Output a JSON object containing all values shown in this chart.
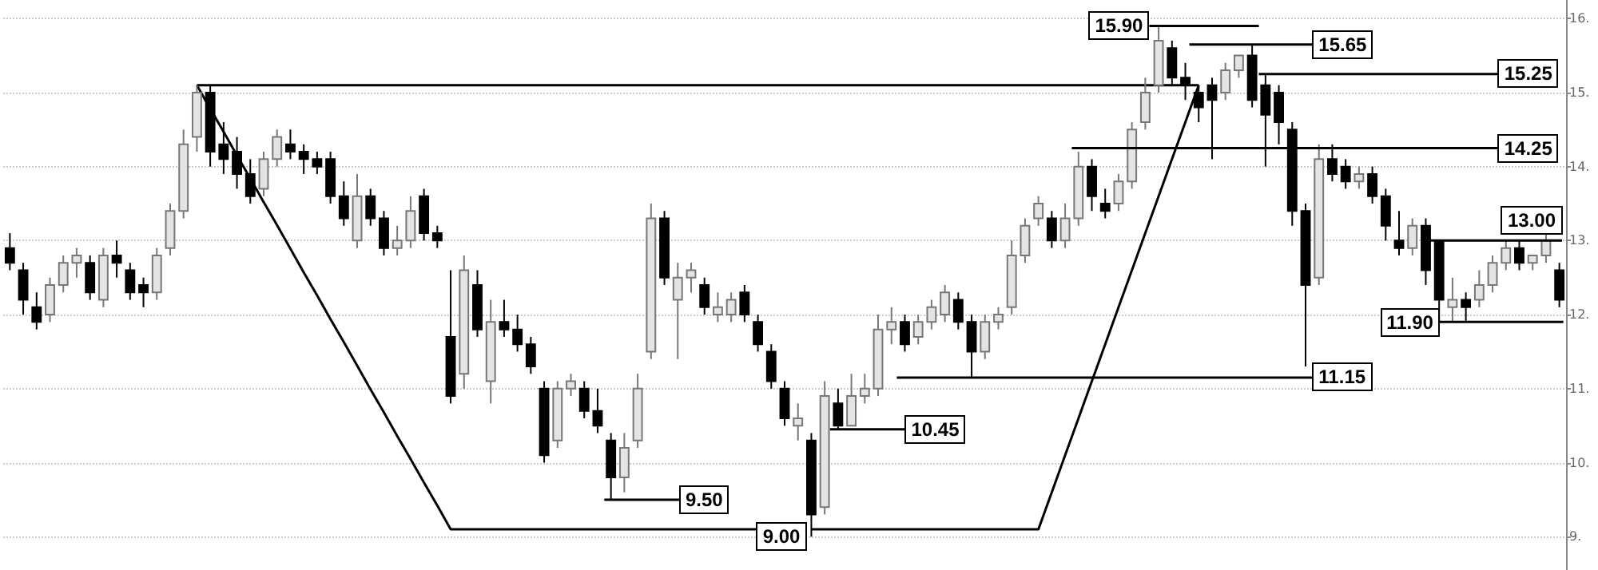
{
  "chart_data": {
    "type": "candlestick",
    "grid": "y",
    "tick_labels": "y",
    "marker": "none",
    "colors": [
      "#000000",
      "#000000",
      "#000000",
      "#e4e4e4",
      "#e4e4e4",
      "#e4e4e4",
      "#000000",
      "#e4e4e4",
      "#000000",
      "#000000",
      "#000000",
      "#e4e4e4",
      "#e4e4e4",
      "#e4e4e4",
      "#e4e4e4",
      "#000000",
      "#000000",
      "#000000",
      "#000000",
      "#e4e4e4",
      "#e4e4e4",
      "#000000",
      "#000000",
      "#000000",
      "#000000",
      "#000000",
      "#e4e4e4",
      "#000000",
      "#000000",
      "#e4e4e4",
      "#e4e4e4",
      "#000000",
      "#000000",
      "#000000",
      "#e4e4e4",
      "#000000",
      "#e4e4e4",
      "#000000",
      "#000000",
      "#000000",
      "#000000",
      "#e4e4e4",
      "#e4e4e4",
      "#000000",
      "#000000",
      "#000000",
      "#e4e4e4",
      "#e4e4e4",
      "#e4e4e4",
      "#000000",
      "#e4e4e4",
      "#e4e4e4",
      "#000000",
      "#e4e4e4",
      "#e4e4e4",
      "#000000",
      "#000000",
      "#000000",
      "#000000",
      "#e4e4e4",
      "#000000",
      "#e4e4e4",
      "#000000",
      "#e4e4e4",
      "#e4e4e4",
      "#e4e4e4",
      "#e4e4e4",
      "#000000",
      "#e4e4e4",
      "#e4e4e4",
      "#e4e4e4",
      "#000000",
      "#000000",
      "#e4e4e4",
      "#e4e4e4",
      "#e4e4e4",
      "#e4e4e4",
      "#e4e4e4",
      "#000000",
      "#e4e4e4",
      "#e4e4e4",
      "#000000",
      "#000000",
      "#e4e4e4",
      "#e4e4e4",
      "#e4e4e4",
      "#e4e4e4",
      "#000000",
      "#000000",
      "#000000",
      "#000000",
      "#e4e4e4",
      "#e4e4e4",
      "#000000",
      "#000000",
      "#000000",
      "#000000",
      "#000000",
      "#e4e4e4",
      "#000000",
      "#000000",
      "#e4e4e4",
      "#000000",
      "#000000",
      "#000000",
      "#e4e4e4",
      "#000000",
      "#000000",
      "#e4e4e4",
      "#000000",
      "#e4e4e4",
      "#e4e4e4",
      "#e4e4e4",
      "#000000",
      "#e4e4e4",
      "#e4e4e4",
      "#000000"
    ],
    "series": [
      {
        "type": "line",
        "color": "#000000",
        "values": [
          null,
          null,
          null,
          null,
          null,
          null,
          null,
          null,
          null,
          null,
          null,
          null,
          null,
          null,
          15.1,
          14.78,
          14.47,
          14.15,
          13.84,
          13.52,
          13.21,
          12.89,
          12.57,
          12.26,
          11.94,
          11.63,
          11.31,
          10.99,
          10.68,
          10.36,
          10.05,
          9.73,
          9.42,
          9.1,
          9.1,
          9.1,
          9.1,
          9.1,
          9.1,
          9.1,
          9.1,
          9.1,
          9.1,
          9.1,
          9.1,
          9.1,
          9.1,
          9.1,
          9.1,
          9.1,
          9.1,
          9.1,
          9.1,
          9.1,
          9.1,
          9.1,
          9.1,
          null,
          null,
          null,
          9.1,
          9.1,
          9.1,
          9.1,
          9.1,
          9.1,
          9.1,
          9.1,
          9.1,
          9.1,
          9.1,
          9.1,
          9.1,
          9.1,
          9.1,
          9.1,
          9.1,
          9.1,
          9.6,
          10.1,
          10.6,
          11.1,
          11.6,
          12.1,
          12.6,
          13.1,
          13.6,
          14.1,
          14.6,
          15.1,
          null,
          null,
          null,
          null,
          null,
          null,
          null,
          null,
          null,
          null,
          null,
          null,
          null,
          null,
          null,
          null,
          null,
          null,
          null,
          null,
          null,
          null,
          null,
          null,
          null,
          null,
          null
        ]
      },
      {
        "type": "line",
        "color": "#000000",
        "values": [
          null,
          null,
          null,
          null,
          null,
          null,
          null,
          null,
          null,
          null,
          null,
          null,
          null,
          null,
          15.1,
          15.1,
          15.1,
          15.1,
          15.1,
          15.1,
          15.1,
          15.1,
          15.1,
          15.1,
          15.1,
          15.1,
          15.1,
          15.1,
          15.1,
          15.1,
          15.1,
          15.1,
          15.1,
          15.1,
          15.1,
          15.1,
          15.1,
          15.1,
          15.1,
          15.1,
          15.1,
          15.1,
          15.1,
          15.1,
          15.1,
          15.1,
          15.1,
          15.1,
          15.1,
          15.1,
          15.1,
          15.1,
          15.1,
          15.1,
          15.1,
          15.1,
          15.1,
          15.1,
          15.1,
          15.1,
          15.1,
          15.1,
          15.1,
          15.1,
          15.1,
          15.1,
          15.1,
          15.1,
          15.1,
          15.1,
          15.1,
          15.1,
          15.1,
          15.1,
          15.1,
          15.1,
          15.1,
          15.1,
          15.1,
          15.1,
          15.1,
          15.1,
          15.1,
          15.1,
          15.1,
          15.1,
          15.1,
          15.1,
          15.1,
          15.1,
          null,
          null,
          null,
          null,
          null,
          null,
          null,
          null,
          null,
          null,
          null,
          null,
          null,
          null,
          null,
          null,
          null,
          null,
          null,
          null,
          null,
          null,
          null,
          null,
          null,
          null,
          null
        ]
      }
    ],
    "ylim": [
      8.55,
      16.25
    ],
    "yticks": [
      {
        "value": 9,
        "label": "9."
      },
      {
        "value": 10,
        "label": "10."
      },
      {
        "value": 11,
        "label": "11."
      },
      {
        "value": 12,
        "label": "12."
      },
      {
        "value": 13,
        "label": "13."
      },
      {
        "value": 14,
        "label": "14."
      },
      {
        "value": 15,
        "label": "15."
      },
      {
        "value": 16,
        "label": "16."
      }
    ],
    "categories": [
      null,
      null,
      null,
      null,
      null,
      null,
      null,
      null,
      null,
      null,
      null,
      null,
      null,
      null,
      null,
      null,
      null,
      null,
      null,
      null,
      null,
      null,
      null,
      null,
      null,
      null,
      null,
      null,
      null,
      null,
      null,
      null,
      null,
      null,
      null,
      null,
      null,
      null,
      null,
      null,
      null,
      null,
      null,
      null,
      null,
      null,
      null,
      null,
      null,
      null,
      null,
      null,
      null,
      null,
      null,
      null,
      null,
      null,
      null,
      null,
      null,
      null,
      null,
      null,
      null,
      null,
      null,
      null,
      null,
      null,
      null,
      null,
      null,
      null,
      null,
      null,
      null,
      null,
      null,
      null,
      null,
      null,
      null,
      null,
      null,
      null,
      null,
      null,
      null,
      null,
      null,
      null,
      null,
      null,
      null,
      null,
      null,
      null,
      null,
      null,
      null,
      null,
      null,
      null,
      null,
      null,
      null,
      null,
      null,
      null,
      null,
      null,
      null,
      null,
      null,
      null,
      null
    ],
    "ohlc": [
      [
        12.9,
        13.1,
        12.6,
        12.7
      ],
      [
        12.6,
        12.7,
        12.0,
        12.2
      ],
      [
        12.1,
        12.3,
        11.8,
        11.9
      ],
      [
        12.0,
        12.5,
        11.9,
        12.4
      ],
      [
        12.4,
        12.8,
        12.3,
        12.7
      ],
      [
        12.7,
        12.9,
        12.5,
        12.8
      ],
      [
        12.7,
        12.8,
        12.2,
        12.3
      ],
      [
        12.2,
        12.9,
        12.1,
        12.8
      ],
      [
        12.8,
        13.0,
        12.5,
        12.7
      ],
      [
        12.6,
        12.7,
        12.2,
        12.3
      ],
      [
        12.4,
        12.5,
        12.1,
        12.3
      ],
      [
        12.3,
        12.9,
        12.2,
        12.8
      ],
      [
        12.9,
        13.5,
        12.8,
        13.4
      ],
      [
        13.4,
        14.5,
        13.3,
        14.3
      ],
      [
        14.4,
        15.1,
        14.2,
        15.0
      ],
      [
        15.0,
        15.1,
        14.0,
        14.2
      ],
      [
        14.3,
        14.6,
        13.9,
        14.1
      ],
      [
        14.2,
        14.4,
        13.7,
        13.9
      ],
      [
        13.9,
        14.1,
        13.5,
        13.6
      ],
      [
        13.7,
        14.2,
        13.6,
        14.1
      ],
      [
        14.1,
        14.5,
        14.0,
        14.4
      ],
      [
        14.3,
        14.5,
        14.1,
        14.2
      ],
      [
        14.2,
        14.3,
        13.9,
        14.1
      ],
      [
        14.1,
        14.2,
        13.9,
        14.0
      ],
      [
        14.1,
        14.2,
        13.5,
        13.6
      ],
      [
        13.6,
        13.8,
        13.2,
        13.3
      ],
      [
        13.0,
        13.9,
        12.9,
        13.6
      ],
      [
        13.6,
        13.7,
        13.2,
        13.3
      ],
      [
        13.3,
        13.4,
        12.8,
        12.9
      ],
      [
        12.9,
        13.2,
        12.8,
        13.0
      ],
      [
        13.0,
        13.6,
        12.9,
        13.4
      ],
      [
        13.6,
        13.7,
        13.0,
        13.1
      ],
      [
        13.1,
        13.2,
        12.9,
        13.0
      ],
      [
        11.7,
        12.6,
        10.8,
        10.9
      ],
      [
        11.2,
        12.8,
        11.0,
        12.6
      ],
      [
        12.4,
        12.6,
        11.7,
        11.8
      ],
      [
        11.1,
        12.2,
        10.8,
        11.9
      ],
      [
        11.9,
        12.2,
        11.7,
        11.8
      ],
      [
        11.8,
        12.0,
        11.5,
        11.6
      ],
      [
        11.6,
        11.7,
        11.2,
        11.3
      ],
      [
        11.0,
        11.1,
        10.0,
        10.1
      ],
      [
        10.3,
        11.1,
        10.2,
        11.0
      ],
      [
        11.0,
        11.2,
        10.9,
        11.1
      ],
      [
        11.0,
        11.1,
        10.6,
        10.7
      ],
      [
        10.7,
        11.0,
        10.4,
        10.5
      ],
      [
        10.3,
        10.4,
        9.5,
        9.8
      ],
      [
        9.8,
        10.4,
        9.6,
        10.2
      ],
      [
        10.3,
        11.2,
        10.2,
        11.0
      ],
      [
        11.5,
        13.5,
        11.4,
        13.3
      ],
      [
        13.3,
        13.4,
        12.4,
        12.5
      ],
      [
        12.2,
        12.7,
        11.4,
        12.5
      ],
      [
        12.5,
        12.7,
        12.3,
        12.6
      ],
      [
        12.4,
        12.5,
        12.0,
        12.1
      ],
      [
        12.0,
        12.3,
        11.9,
        12.1
      ],
      [
        12.0,
        12.3,
        11.9,
        12.2
      ],
      [
        12.3,
        12.4,
        11.9,
        12.0
      ],
      [
        11.9,
        12.0,
        11.5,
        11.6
      ],
      [
        11.5,
        11.6,
        11.0,
        11.1
      ],
      [
        11.0,
        11.1,
        10.5,
        10.6
      ],
      [
        10.5,
        10.8,
        10.3,
        10.6
      ],
      [
        10.3,
        10.4,
        9.0,
        9.3
      ],
      [
        9.4,
        11.1,
        9.3,
        10.9
      ],
      [
        10.8,
        11.0,
        10.45,
        10.5
      ],
      [
        10.5,
        11.2,
        10.5,
        10.9
      ],
      [
        10.9,
        11.2,
        10.8,
        11.0
      ],
      [
        11.0,
        12.0,
        10.9,
        11.8
      ],
      [
        11.8,
        12.1,
        11.6,
        11.9
      ],
      [
        11.9,
        12.0,
        11.5,
        11.6
      ],
      [
        11.7,
        12.0,
        11.6,
        11.9
      ],
      [
        11.9,
        12.2,
        11.8,
        12.1
      ],
      [
        12.0,
        12.4,
        11.9,
        12.3
      ],
      [
        12.2,
        12.3,
        11.8,
        11.9
      ],
      [
        11.9,
        12.0,
        11.15,
        11.5
      ],
      [
        11.5,
        12.0,
        11.4,
        11.9
      ],
      [
        11.9,
        12.1,
        11.8,
        12.0
      ],
      [
        12.1,
        13.0,
        12.0,
        12.8
      ],
      [
        12.8,
        13.3,
        12.7,
        13.2
      ],
      [
        13.3,
        13.6,
        13.2,
        13.5
      ],
      [
        13.3,
        13.4,
        12.9,
        13.0
      ],
      [
        13.0,
        13.5,
        12.9,
        13.3
      ],
      [
        13.3,
        14.2,
        13.2,
        14.0
      ],
      [
        14.0,
        14.1,
        13.4,
        13.6
      ],
      [
        13.5,
        13.7,
        13.3,
        13.4
      ],
      [
        13.5,
        13.9,
        13.4,
        13.8
      ],
      [
        13.8,
        14.6,
        13.7,
        14.5
      ],
      [
        14.6,
        15.2,
        14.5,
        15.0
      ],
      [
        15.1,
        15.9,
        15.0,
        15.7
      ],
      [
        15.6,
        15.7,
        15.1,
        15.2
      ],
      [
        15.2,
        15.4,
        14.9,
        15.1
      ],
      [
        15.0,
        15.1,
        14.6,
        14.8
      ],
      [
        15.1,
        15.2,
        14.1,
        14.9
      ],
      [
        15.0,
        15.4,
        14.9,
        15.3
      ],
      [
        15.3,
        15.5,
        15.2,
        15.5
      ],
      [
        15.5,
        15.65,
        14.8,
        14.9
      ],
      [
        15.1,
        15.25,
        14.0,
        14.7
      ],
      [
        15.0,
        15.1,
        14.3,
        14.6
      ],
      [
        14.5,
        14.6,
        13.2,
        13.4
      ],
      [
        13.4,
        13.5,
        11.3,
        12.4
      ],
      [
        12.5,
        14.3,
        12.4,
        14.1
      ],
      [
        14.1,
        14.3,
        13.8,
        13.9
      ],
      [
        14.0,
        14.1,
        13.7,
        13.8
      ],
      [
        13.8,
        14.0,
        13.7,
        13.9
      ],
      [
        13.9,
        14.0,
        13.5,
        13.6
      ],
      [
        13.6,
        13.7,
        13.0,
        13.2
      ],
      [
        13.0,
        13.4,
        12.8,
        12.9
      ],
      [
        12.9,
        13.3,
        12.8,
        13.2
      ],
      [
        13.2,
        13.3,
        12.4,
        12.6
      ],
      [
        13.0,
        13.0,
        11.9,
        12.2
      ],
      [
        12.1,
        12.5,
        11.9,
        12.2
      ],
      [
        12.2,
        12.3,
        11.9,
        12.1
      ],
      [
        12.2,
        12.6,
        12.1,
        12.4
      ],
      [
        12.4,
        12.8,
        12.3,
        12.7
      ],
      [
        12.7,
        13.0,
        12.6,
        12.9
      ],
      [
        12.9,
        13.0,
        12.6,
        12.7
      ],
      [
        12.7,
        12.8,
        12.6,
        12.8
      ],
      [
        12.8,
        13.1,
        12.7,
        13.0
      ],
      [
        12.6,
        12.7,
        12.1,
        12.2
      ]
    ],
    "ref_lines": [
      {
        "axis": "y",
        "value": 15.9,
        "label": "15.90"
      },
      {
        "axis": "y",
        "value": 15.65,
        "label": "15.65"
      },
      {
        "axis": "y",
        "value": 15.25,
        "label": "15.25"
      },
      {
        "axis": "y",
        "value": 14.25,
        "label": "14.25"
      },
      {
        "axis": "y",
        "value": 13.0,
        "label": "13.00"
      },
      {
        "axis": "y",
        "value": 11.9,
        "label": "11.90"
      },
      {
        "axis": "y",
        "value": 11.15,
        "label": "11.15"
      },
      {
        "axis": "y",
        "value": 10.45,
        "label": "10.45"
      },
      {
        "axis": "y",
        "value": 9.5,
        "label": "9.50"
      },
      {
        "axis": "y",
        "value": 9.0,
        "label": "9.00"
      }
    ]
  }
}
